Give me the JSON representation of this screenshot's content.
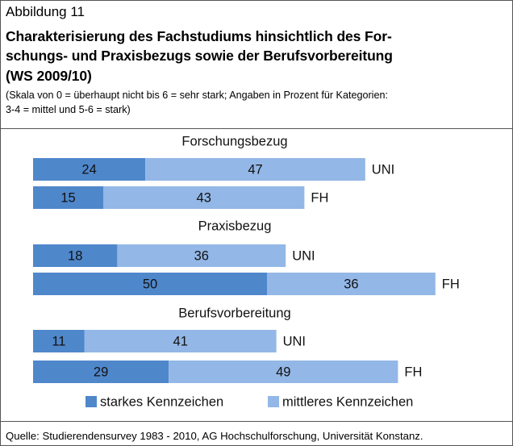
{
  "figure_label": "Abbildung 11",
  "title_lines": [
    "Charakterisierung des Fachstudiums hinsichtlich des For-",
    "schungs- und Praxisbezugs sowie der Berufsvorbereitung",
    "(WS 2009/10)"
  ],
  "subtitle_lines": [
    "(Skala von 0 = überhaupt nicht bis 6 = sehr stark; Angaben in Prozent für Kategorien:",
    "3-4 = mittel und 5-6 = stark)"
  ],
  "source": "Quelle: Studierendensurvey 1983 - 2010, AG Hochschulforschung, Universität Konstanz.",
  "chart_data": {
    "type": "bar",
    "orientation": "horizontal",
    "stacked": true,
    "groups": [
      "Forschungsbezug",
      "Praxisbezug",
      "Berufsvorbereitung"
    ],
    "categories": [
      "UNI",
      "FH",
      "UNI",
      "FH",
      "UNI",
      "FH"
    ],
    "series": [
      {
        "name": "starkes Kennzeichen",
        "color": "#4f87cb",
        "values": [
          24,
          15,
          18,
          50,
          11,
          29
        ]
      },
      {
        "name": "mittleres Kennzeichen",
        "color": "#93b7e6",
        "values": [
          47,
          43,
          36,
          36,
          41,
          49
        ]
      }
    ]
  }
}
